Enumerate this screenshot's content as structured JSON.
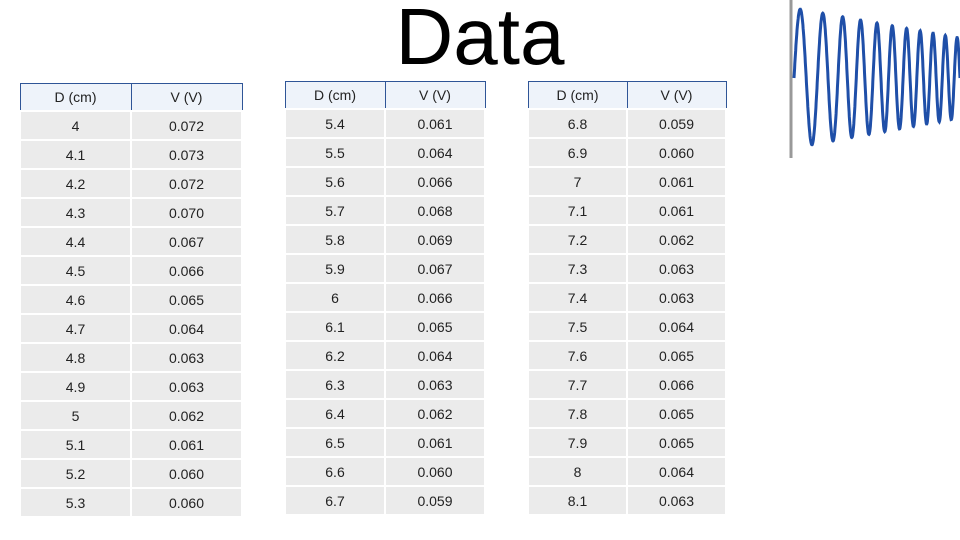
{
  "title": "Data",
  "tables": [
    {
      "header": [
        "D (cm)",
        "V (V)"
      ],
      "rows": [
        [
          "4",
          "0.072"
        ],
        [
          "4.1",
          "0.073"
        ],
        [
          "4.2",
          "0.072"
        ],
        [
          "4.3",
          "0.070"
        ],
        [
          "4.4",
          "0.067"
        ],
        [
          "4.5",
          "0.066"
        ],
        [
          "4.6",
          "0.065"
        ],
        [
          "4.7",
          "0.064"
        ],
        [
          "4.8",
          "0.063"
        ],
        [
          "4.9",
          "0.063"
        ],
        [
          "5",
          "0.062"
        ],
        [
          "5.1",
          "0.061"
        ],
        [
          "5.2",
          "0.060"
        ],
        [
          "5.3",
          "0.060"
        ]
      ]
    },
    {
      "header": [
        "D (cm)",
        "V (V)"
      ],
      "rows": [
        [
          "5.4",
          "0.061"
        ],
        [
          "5.5",
          "0.064"
        ],
        [
          "5.6",
          "0.066"
        ],
        [
          "5.7",
          "0.068"
        ],
        [
          "5.8",
          "0.069"
        ],
        [
          "5.9",
          "0.067"
        ],
        [
          "6",
          "0.066"
        ],
        [
          "6.1",
          "0.065"
        ],
        [
          "6.2",
          "0.064"
        ],
        [
          "6.3",
          "0.063"
        ],
        [
          "6.4",
          "0.062"
        ],
        [
          "6.5",
          "0.061"
        ],
        [
          "6.6",
          "0.060"
        ],
        [
          "6.7",
          "0.059"
        ]
      ]
    },
    {
      "header": [
        "D (cm)",
        "V (V)"
      ],
      "rows": [
        [
          "6.8",
          "0.059"
        ],
        [
          "6.9",
          "0.060"
        ],
        [
          "7",
          "0.061"
        ],
        [
          "7.1",
          "0.061"
        ],
        [
          "7.2",
          "0.062"
        ],
        [
          "7.3",
          "0.063"
        ],
        [
          "7.4",
          "0.063"
        ],
        [
          "7.5",
          "0.064"
        ],
        [
          "7.6",
          "0.065"
        ],
        [
          "7.7",
          "0.066"
        ],
        [
          "7.8",
          "0.065"
        ],
        [
          "7.9",
          "0.065"
        ],
        [
          "8",
          "0.064"
        ],
        [
          "8.1",
          "0.063"
        ]
      ]
    }
  ]
}
